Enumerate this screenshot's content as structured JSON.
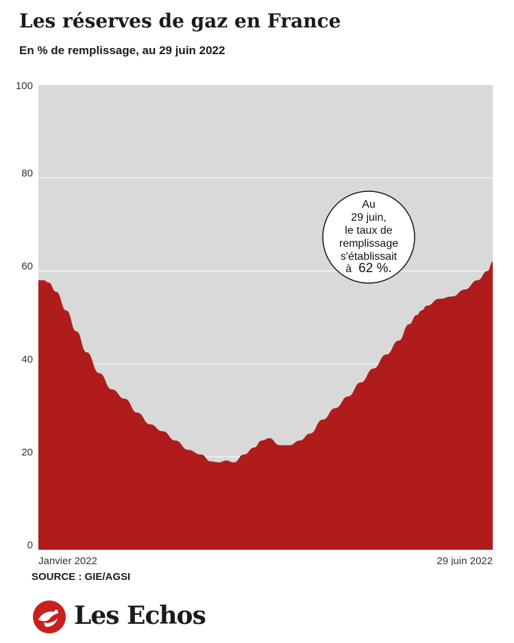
{
  "header": {
    "title": "Les réserves de gaz en France",
    "subtitle": "En % de remplissage, au 29 juin 2022"
  },
  "colors": {
    "fill": "#b01c1c",
    "background_area": "#d9d9d9",
    "gridline": "#ffffff"
  },
  "chart_data": {
    "type": "area",
    "title": "Les réserves de gaz en France",
    "subtitle": "En % de remplissage, au 29 juin 2022",
    "xlabel": "",
    "ylabel": "",
    "ylim": [
      0,
      100
    ],
    "yticks": [
      0,
      20,
      40,
      60,
      80,
      100
    ],
    "x_tick_labels": [
      "Janvier 2022",
      "29 juin 2022"
    ],
    "x_range": [
      "2022-01-01",
      "2022-06-29"
    ],
    "grid": true,
    "series": [
      {
        "x": [
          "2022-01-01",
          "2022-01-03",
          "2022-01-05",
          "2022-01-08",
          "2022-01-12",
          "2022-01-16",
          "2022-01-20",
          "2022-01-25",
          "2022-01-30",
          "2022-02-04",
          "2022-02-09",
          "2022-02-14",
          "2022-02-19",
          "2022-02-24",
          "2022-03-01",
          "2022-03-06",
          "2022-03-10",
          "2022-03-13",
          "2022-03-16",
          "2022-03-19",
          "2022-03-23",
          "2022-03-27",
          "2022-03-30",
          "2022-04-02",
          "2022-04-06",
          "2022-04-10",
          "2022-04-14",
          "2022-04-18",
          "2022-04-23",
          "2022-04-28",
          "2022-05-03",
          "2022-05-08",
          "2022-05-13",
          "2022-05-18",
          "2022-05-23",
          "2022-05-27",
          "2022-05-30",
          "2022-06-01",
          "2022-06-03",
          "2022-06-08",
          "2022-06-13",
          "2022-06-18",
          "2022-06-23",
          "2022-06-27",
          "2022-06-29"
        ],
        "values": [
          58,
          58,
          57.5,
          55.5,
          51.5,
          47,
          42.5,
          38,
          34.5,
          32.5,
          29.5,
          27,
          25.5,
          23.5,
          21.5,
          20.5,
          19,
          18.8,
          19.2,
          18.8,
          20.5,
          22,
          23.5,
          24,
          22.5,
          22.5,
          23.5,
          25,
          28,
          30.5,
          33,
          36,
          39,
          42,
          45,
          48.5,
          50.5,
          51.5,
          52.5,
          54,
          54.5,
          56,
          58,
          60,
          62
        ]
      }
    ],
    "annotation": {
      "text_lines": [
        "Au",
        "29 juin,",
        "le taux de",
        "remplissage",
        "s'établissait"
      ],
      "last_line_prefix": "à",
      "last_line_value": "62 %."
    }
  },
  "footer": {
    "source": "SOURCE : GIE/AGSI",
    "logo_text": "Les Echos"
  }
}
